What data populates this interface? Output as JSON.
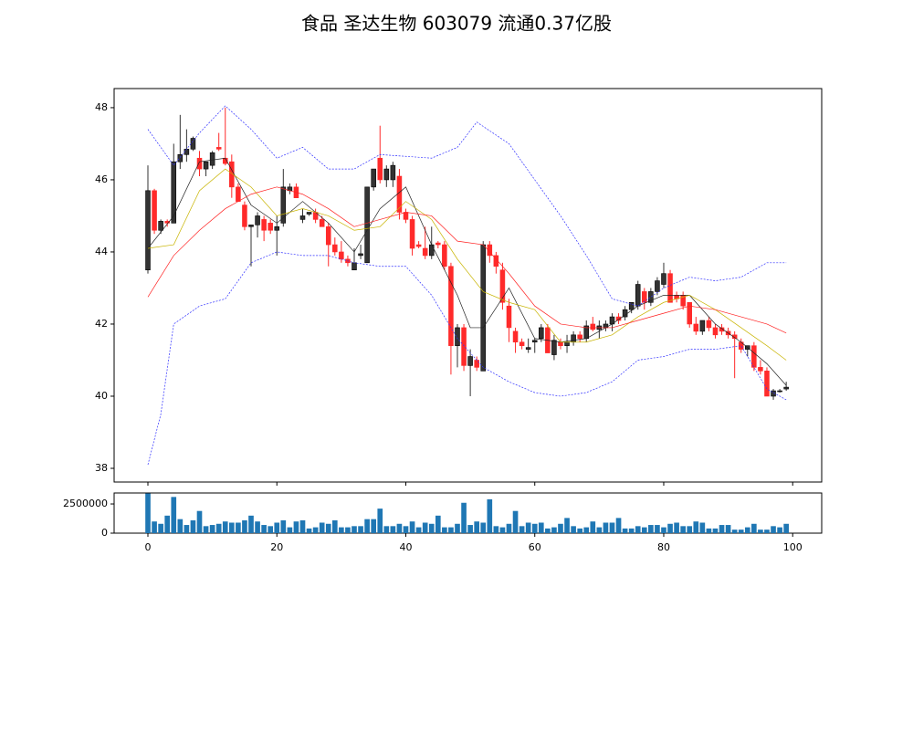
{
  "chart_data": [
    {
      "type": "candlestick",
      "title": "食品 圣达生物 603079 流通0.37亿股",
      "x": [
        0,
        1,
        2,
        3,
        4,
        5,
        6,
        7,
        8,
        9,
        10,
        11,
        12,
        13,
        14,
        15,
        16,
        17,
        18,
        19,
        20,
        21,
        22,
        23,
        24,
        25,
        26,
        27,
        28,
        29,
        30,
        31,
        32,
        33,
        34,
        35,
        36,
        37,
        38,
        39,
        40,
        41,
        42,
        43,
        44,
        45,
        46,
        47,
        48,
        49,
        50,
        51,
        52,
        53,
        54,
        55,
        56,
        57,
        58,
        59,
        60,
        61,
        62,
        63,
        64,
        65,
        66,
        67,
        68,
        69,
        70,
        71,
        72,
        73,
        74,
        75,
        76,
        77,
        78,
        79,
        80,
        81,
        82,
        83,
        84,
        85,
        86,
        87,
        88,
        89,
        90,
        91,
        92,
        93,
        94,
        95,
        96,
        97,
        98,
        99
      ],
      "open": [
        43.5,
        45.7,
        44.6,
        44.85,
        44.8,
        46.5,
        46.7,
        46.85,
        46.6,
        46.3,
        46.4,
        46.9,
        46.6,
        46.5,
        45.8,
        45.3,
        44.7,
        44.75,
        44.9,
        44.8,
        44.6,
        44.8,
        45.7,
        45.8,
        44.9,
        45.05,
        45.1,
        44.9,
        44.7,
        44.2,
        44.0,
        43.8,
        43.5,
        43.9,
        43.7,
        45.8,
        46.6,
        46.0,
        46.0,
        46.1,
        45.1,
        44.9,
        44.2,
        44.1,
        43.9,
        44.25,
        44.2,
        43.6,
        41.4,
        41.9,
        40.85,
        41.0,
        40.7,
        44.2,
        43.9,
        43.5,
        42.5,
        41.8,
        41.5,
        41.3,
        41.5,
        41.6,
        41.9,
        41.15,
        41.5,
        41.4,
        41.5,
        41.7,
        41.6,
        42.0,
        41.85,
        41.9,
        42.0,
        42.2,
        42.2,
        42.4,
        42.5,
        42.9,
        42.6,
        42.9,
        43.1,
        43.4,
        42.8,
        42.8,
        42.6,
        42.0,
        41.8,
        42.1,
        41.9,
        41.9,
        41.8,
        41.7,
        41.5,
        41.3,
        41.4,
        40.8,
        40.7,
        40.0,
        40.15,
        40.2
      ],
      "high": [
        46.4,
        45.75,
        44.9,
        44.9,
        47.0,
        47.8,
        47.4,
        47.2,
        46.8,
        46.5,
        46.8,
        47.3,
        48.0,
        46.7,
        45.9,
        45.4,
        44.75,
        45.1,
        45.0,
        44.9,
        45.0,
        46.3,
        45.9,
        45.9,
        45.2,
        45.1,
        45.2,
        45.0,
        44.8,
        44.4,
        44.3,
        43.9,
        44.1,
        44.2,
        45.8,
        46.3,
        47.5,
        46.4,
        46.5,
        46.3,
        45.2,
        45.0,
        44.3,
        44.7,
        44.7,
        44.3,
        44.3,
        43.7,
        42.0,
        42.0,
        41.3,
        41.1,
        44.3,
        44.3,
        44.0,
        43.7,
        42.7,
        41.9,
        41.6,
        41.6,
        41.6,
        42.0,
        42.0,
        41.7,
        41.6,
        41.7,
        41.8,
        41.8,
        42.1,
        42.2,
        42.1,
        42.1,
        42.3,
        42.3,
        42.5,
        42.6,
        43.2,
        43.0,
        43.0,
        43.3,
        43.7,
        43.5,
        42.9,
        42.9,
        42.6,
        42.2,
        42.1,
        42.2,
        42.0,
        42.0,
        41.9,
        41.8,
        41.6,
        41.4,
        41.5,
        41.0,
        40.8,
        40.2,
        40.2,
        40.4
      ],
      "low": [
        43.4,
        44.5,
        44.5,
        44.7,
        44.8,
        46.3,
        46.5,
        46.8,
        46.1,
        46.1,
        46.3,
        46.8,
        46.4,
        45.5,
        45.4,
        44.6,
        43.6,
        44.4,
        44.3,
        44.5,
        43.9,
        44.7,
        45.6,
        45.5,
        44.8,
        45.0,
        44.8,
        44.7,
        43.6,
        43.9,
        43.7,
        43.6,
        43.5,
        43.8,
        43.7,
        45.7,
        45.9,
        45.8,
        45.8,
        44.9,
        44.8,
        43.9,
        44.1,
        43.8,
        43.8,
        44.1,
        43.5,
        40.6,
        40.8,
        40.7,
        40.0,
        40.7,
        40.7,
        43.7,
        43.4,
        42.4,
        41.5,
        41.2,
        41.3,
        41.2,
        41.2,
        41.5,
        41.2,
        41.0,
        41.3,
        41.2,
        41.4,
        41.5,
        41.5,
        41.8,
        41.6,
        41.8,
        41.8,
        42.0,
        42.1,
        42.3,
        42.4,
        42.4,
        42.5,
        42.8,
        43.0,
        42.6,
        42.6,
        42.4,
        41.9,
        41.7,
        41.7,
        41.8,
        41.6,
        41.7,
        41.6,
        40.5,
        41.2,
        41.1,
        40.7,
        40.6,
        40.0,
        39.9,
        40.1,
        40.15
      ],
      "close": [
        45.7,
        44.6,
        44.85,
        44.8,
        46.5,
        46.7,
        46.85,
        47.15,
        46.3,
        46.5,
        46.75,
        46.85,
        46.45,
        45.8,
        45.4,
        44.7,
        44.75,
        45.0,
        44.6,
        44.6,
        44.7,
        45.8,
        45.8,
        45.5,
        45.0,
        45.1,
        44.9,
        44.7,
        44.2,
        44.0,
        43.8,
        43.7,
        43.7,
        43.95,
        45.8,
        46.3,
        46.0,
        46.3,
        46.4,
        45.1,
        44.9,
        44.1,
        44.15,
        43.9,
        44.2,
        44.2,
        43.6,
        41.4,
        41.9,
        40.85,
        41.1,
        40.8,
        44.2,
        43.9,
        43.6,
        42.6,
        41.9,
        41.5,
        41.4,
        41.35,
        41.55,
        41.9,
        41.2,
        41.55,
        41.4,
        41.5,
        41.7,
        41.6,
        41.95,
        41.85,
        41.95,
        42.0,
        42.2,
        42.1,
        42.4,
        42.6,
        43.1,
        42.6,
        42.9,
        43.2,
        43.4,
        42.6,
        42.7,
        42.5,
        42.0,
        41.8,
        42.1,
        41.9,
        41.7,
        41.8,
        41.7,
        41.6,
        41.3,
        41.4,
        40.8,
        40.7,
        40.0,
        40.15,
        40.15,
        40.25
      ],
      "up_color": "#333333",
      "down_color": "#ff2a2a",
      "series": [
        {
          "color": "#222222",
          "x": [
            0,
            4,
            8,
            12,
            16,
            20,
            24,
            28,
            32,
            36,
            40,
            44,
            48,
            50,
            52,
            56,
            60,
            64,
            68,
            72,
            76,
            80,
            84,
            88,
            92,
            96,
            99
          ],
          "values": [
            44.1,
            45.0,
            46.5,
            46.6,
            45.3,
            44.8,
            45.4,
            44.8,
            44.0,
            45.2,
            45.8,
            44.2,
            42.8,
            41.9,
            41.9,
            43.0,
            41.6,
            41.5,
            41.6,
            42.0,
            42.5,
            42.8,
            42.8,
            42.0,
            41.5,
            40.9,
            40.3
          ]
        },
        {
          "color": "#c8b400",
          "x": [
            0,
            4,
            8,
            12,
            16,
            20,
            24,
            28,
            32,
            36,
            40,
            44,
            48,
            52,
            56,
            60,
            64,
            68,
            72,
            76,
            80,
            84,
            88,
            92,
            96,
            99
          ],
          "values": [
            44.1,
            44.2,
            45.7,
            46.3,
            45.8,
            45.0,
            45.2,
            45.0,
            44.6,
            44.7,
            45.4,
            44.9,
            43.8,
            42.9,
            42.6,
            42.4,
            41.5,
            41.5,
            41.7,
            42.2,
            42.6,
            42.8,
            42.4,
            41.9,
            41.4,
            41.0
          ]
        },
        {
          "color": "#ff2020",
          "x": [
            0,
            4,
            8,
            12,
            16,
            20,
            24,
            28,
            32,
            36,
            40,
            44,
            48,
            52,
            56,
            60,
            64,
            68,
            72,
            76,
            80,
            84,
            88,
            92,
            96,
            99
          ],
          "values": [
            42.75,
            43.9,
            44.6,
            45.2,
            45.6,
            45.8,
            45.6,
            45.2,
            44.7,
            44.9,
            45.1,
            45.0,
            44.3,
            44.2,
            43.4,
            42.5,
            42.0,
            41.9,
            41.9,
            42.1,
            42.3,
            42.5,
            42.4,
            42.2,
            42.0,
            41.75
          ]
        },
        {
          "color": "#3030ff",
          "linestyle": "dashed",
          "x": [
            0,
            4,
            8,
            12,
            16,
            20,
            24,
            28,
            32,
            36,
            40,
            44,
            48,
            51,
            56,
            60,
            64,
            68,
            72,
            76,
            80,
            84,
            88,
            92,
            96,
            99
          ],
          "values": [
            47.4,
            46.4,
            47.3,
            48.05,
            47.4,
            46.6,
            46.9,
            46.3,
            46.3,
            46.7,
            46.65,
            46.6,
            46.9,
            47.6,
            47.0,
            46.0,
            45.0,
            43.9,
            42.7,
            42.5,
            43.0,
            43.3,
            43.2,
            43.3,
            43.7,
            43.7
          ]
        },
        {
          "color": "#3030ff",
          "linestyle": "dashed",
          "x": [
            0,
            2,
            4,
            8,
            12,
            16,
            20,
            24,
            28,
            32,
            36,
            40,
            44,
            48,
            52,
            56,
            60,
            64,
            68,
            72,
            76,
            80,
            84,
            88,
            92,
            96,
            99
          ],
          "values": [
            38.1,
            39.5,
            42.0,
            42.5,
            42.7,
            43.7,
            44.0,
            43.9,
            43.9,
            43.7,
            43.6,
            43.6,
            42.8,
            41.6,
            40.8,
            40.4,
            40.1,
            40.0,
            40.1,
            40.4,
            41.0,
            41.1,
            41.3,
            41.3,
            41.4,
            40.2,
            39.9
          ]
        }
      ],
      "xlim": [
        -5.24,
        104.5
      ],
      "ylim": [
        37.62,
        48.53
      ],
      "yticks": [
        38,
        40,
        42,
        44,
        46,
        48
      ],
      "xticks": [
        0,
        20,
        40,
        60,
        80,
        100
      ]
    },
    {
      "type": "bar",
      "color": "#1f77b4",
      "x": [
        0,
        1,
        2,
        3,
        4,
        5,
        6,
        7,
        8,
        9,
        10,
        11,
        12,
        13,
        14,
        15,
        16,
        17,
        18,
        19,
        20,
        21,
        22,
        23,
        24,
        25,
        26,
        27,
        28,
        29,
        30,
        31,
        32,
        33,
        34,
        35,
        36,
        37,
        38,
        39,
        40,
        41,
        42,
        43,
        44,
        45,
        46,
        47,
        48,
        49,
        50,
        51,
        52,
        53,
        54,
        55,
        56,
        57,
        58,
        59,
        60,
        61,
        62,
        63,
        64,
        65,
        66,
        67,
        68,
        69,
        70,
        71,
        72,
        73,
        74,
        75,
        76,
        77,
        78,
        79,
        80,
        81,
        82,
        83,
        84,
        85,
        86,
        87,
        88,
        89,
        90,
        91,
        92,
        93,
        94,
        95,
        96,
        97,
        98,
        99
      ],
      "values": [
        3400000,
        1000000,
        800000,
        1500000,
        3100000,
        1200000,
        700000,
        1100000,
        1900000,
        600000,
        700000,
        800000,
        1000000,
        900000,
        900000,
        1100000,
        1500000,
        1000000,
        700000,
        600000,
        900000,
        1100000,
        500000,
        1000000,
        1100000,
        400000,
        500000,
        900000,
        800000,
        1100000,
        500000,
        500000,
        600000,
        600000,
        1200000,
        1200000,
        2100000,
        600000,
        600000,
        800000,
        600000,
        1000000,
        500000,
        900000,
        800000,
        1500000,
        500000,
        500000,
        800000,
        2600000,
        700000,
        1000000,
        900000,
        2900000,
        600000,
        500000,
        800000,
        1900000,
        600000,
        900000,
        800000,
        900000,
        400000,
        500000,
        800000,
        1300000,
        600000,
        400000,
        500000,
        1000000,
        500000,
        900000,
        900000,
        1300000,
        400000,
        400000,
        600000,
        500000,
        700000,
        700000,
        500000,
        800000,
        900000,
        600000,
        600000,
        1000000,
        900000,
        400000,
        400000,
        700000,
        700000,
        300000,
        300000,
        500000,
        800000,
        300000,
        300000,
        600000,
        500000,
        800000
      ],
      "xlim": [
        -5.24,
        104.5
      ],
      "ylim": [
        0,
        3440000
      ],
      "yticks": [
        0,
        2500000
      ],
      "xticks": [
        0,
        20,
        40,
        60,
        80,
        100
      ]
    }
  ]
}
